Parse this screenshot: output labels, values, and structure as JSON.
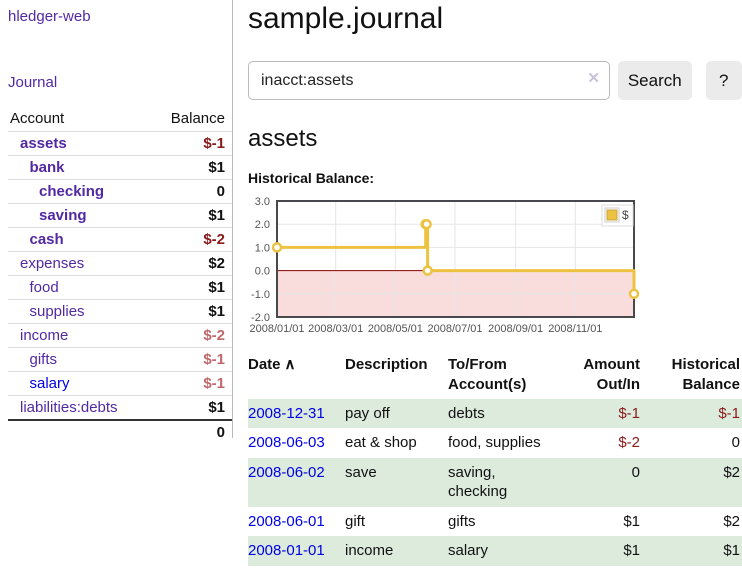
{
  "colors": {
    "link_purple": "#5229a3",
    "link_blue": "#0000e0",
    "negative_strong": "#8b1a1a",
    "negative_soft": "#c0696b",
    "table_stripe_green": "#ddebdd",
    "chart_series_gold": "#edc240",
    "chart_negative_region": "#f9dddd",
    "chart_zero_line": "#8b0000"
  },
  "app": {
    "title": "hledger-web"
  },
  "nav": {
    "journal": "Journal"
  },
  "sidebar": {
    "header": {
      "account": "Account",
      "balance": "Balance"
    },
    "accounts": [
      {
        "name": "assets",
        "depth": 1,
        "bold": true,
        "link": "purple",
        "balance": "$-1",
        "balance_class": "neg"
      },
      {
        "name": "bank",
        "depth": 2,
        "bold": true,
        "link": "purple",
        "balance": "$1",
        "balance_class": ""
      },
      {
        "name": "checking",
        "depth": 3,
        "bold": true,
        "link": "purple",
        "balance": "0",
        "balance_class": ""
      },
      {
        "name": "saving",
        "depth": 3,
        "bold": true,
        "link": "purple",
        "balance": "$1",
        "balance_class": ""
      },
      {
        "name": "cash",
        "depth": 2,
        "bold": true,
        "link": "purple",
        "balance": "$-2",
        "balance_class": "neg"
      },
      {
        "name": "expenses",
        "depth": 1,
        "bold": false,
        "link": "purple",
        "balance": "$2",
        "balance_class": ""
      },
      {
        "name": "food",
        "depth": 2,
        "bold": false,
        "link": "purple",
        "balance": "$1",
        "balance_class": ""
      },
      {
        "name": "supplies",
        "depth": 2,
        "bold": false,
        "link": "purple",
        "balance": "$1",
        "balance_class": ""
      },
      {
        "name": "income",
        "depth": 1,
        "bold": false,
        "link": "purple",
        "balance": "$-2",
        "balance_class": "soft-neg"
      },
      {
        "name": "gifts",
        "depth": 2,
        "bold": false,
        "link": "purple",
        "balance": "$-1",
        "balance_class": "soft-neg"
      },
      {
        "name": "salary",
        "depth": 2,
        "bold": false,
        "link": "blue",
        "balance": "$-1",
        "balance_class": "soft-neg"
      },
      {
        "name": "liabilities:debts",
        "depth": 1,
        "bold": false,
        "link": "purple",
        "balance": "$1",
        "balance_class": ""
      }
    ],
    "total": "0"
  },
  "header": {
    "title": "sample.journal"
  },
  "search": {
    "value": "inacct:assets",
    "clear_icon": "✕",
    "button_label": "Search",
    "help_label": "?"
  },
  "account_page": {
    "heading": "assets",
    "chart_title": "Historical Balance:"
  },
  "chart_data": {
    "type": "line",
    "title": "Historical Balance:",
    "steps": true,
    "series": [
      {
        "name": "$",
        "color": "#edc240",
        "points": [
          [
            "2008/01/01",
            1
          ],
          [
            "2008/06/01",
            2
          ],
          [
            "2008/06/02",
            2
          ],
          [
            "2008/06/03",
            0
          ],
          [
            "2008/12/31",
            -1
          ]
        ]
      }
    ],
    "x_ticks": [
      "2008/01/01",
      "2008/03/01",
      "2008/05/01",
      "2008/07/01",
      "2008/09/01",
      "2008/11/01"
    ],
    "y_ticks": [
      3.0,
      2.0,
      1.0,
      0.0,
      -1.0,
      -2.0
    ],
    "y_tick_labels": [
      "3.0",
      "2.0",
      "1.0",
      "0.0",
      "-1.0",
      "-2.0"
    ],
    "ylim": [
      -2,
      3
    ],
    "x_start": "2008/01/01",
    "x_end": "2008/12/31",
    "grid": true,
    "negative_region_color": "#f9dddd",
    "zero_line_color": "#8b0000",
    "legend": {
      "label": "$",
      "position": "top-right"
    }
  },
  "register": {
    "sort_icon": "∧",
    "headers": {
      "date": "Date",
      "description": "Description",
      "account": "To/From Account(s)",
      "amount": "Amount Out/In",
      "balance": "Historical Balance"
    },
    "rows": [
      {
        "date": "2008-12-31",
        "description": "pay off",
        "accounts": "debts",
        "amount": "$-1",
        "amount_negative": true,
        "balance": "$-1",
        "balance_negative": true
      },
      {
        "date": "2008-06-03",
        "description": "eat & shop",
        "accounts": "food, supplies",
        "amount": "$-2",
        "amount_negative": true,
        "balance": "0",
        "balance_negative": false
      },
      {
        "date": "2008-06-02",
        "description": "save",
        "accounts": "saving, checking",
        "amount": "0",
        "amount_negative": false,
        "balance": "$2",
        "balance_negative": false
      },
      {
        "date": "2008-06-01",
        "description": "gift",
        "accounts": "gifts",
        "amount": "$1",
        "amount_negative": false,
        "balance": "$2",
        "balance_negative": false
      },
      {
        "date": "2008-01-01",
        "description": "income",
        "accounts": "salary",
        "amount": "$1",
        "amount_negative": false,
        "balance": "$1",
        "balance_negative": false
      }
    ]
  }
}
